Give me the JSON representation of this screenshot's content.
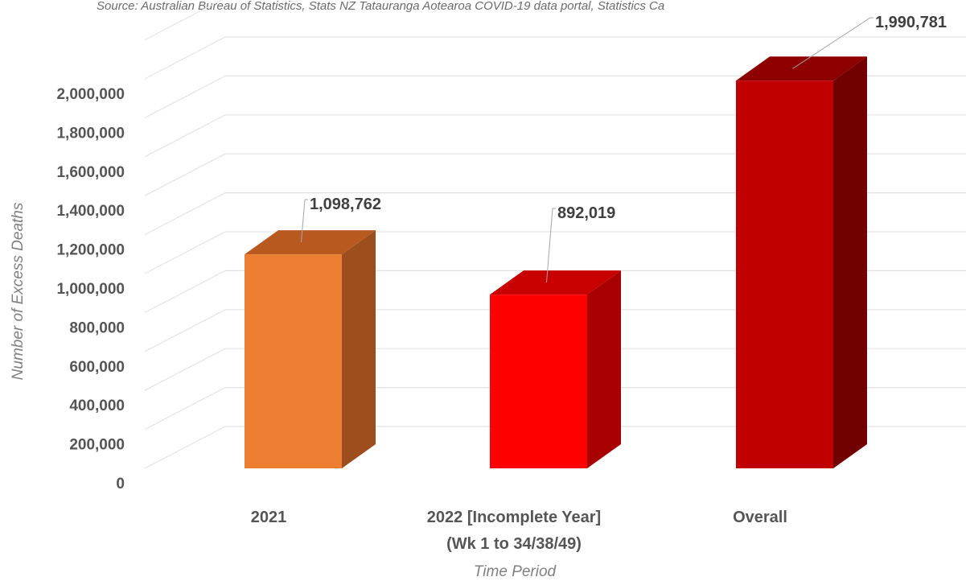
{
  "source_note": "Source: Australian Bureau of Statistics, Stats NZ Tatauranga Aotearoa COVID-19 data portal, Statistics Ca",
  "chart_data": {
    "type": "bar",
    "style": "3d-column",
    "title": "",
    "xlabel": "Time Period",
    "ylabel": "Number of Excess Deaths",
    "ylim": [
      0,
      2000000
    ],
    "ytick_step": 200000,
    "yticks": [
      "0",
      "200,000",
      "400,000",
      "600,000",
      "800,000",
      "1,000,000",
      "1,200,000",
      "1,400,000",
      "1,600,000",
      "1,800,000",
      "2,000,000"
    ],
    "grid": true,
    "legend": "none",
    "categories": [
      [
        "2021"
      ],
      [
        "2022 [Incomplete Year]",
        "(Wk 1 to 34/38/49)"
      ],
      [
        "Overall"
      ]
    ],
    "values": [
      1098762,
      892019,
      1990781
    ],
    "data_labels": [
      "1,098,762",
      "892,019",
      "1,990,781"
    ],
    "colors": [
      {
        "front": "#ED7D31",
        "side": "#9E4D1C",
        "top": "#B85A20"
      },
      {
        "front": "#FF0000",
        "side": "#A80000",
        "top": "#C80000"
      },
      {
        "front": "#C00000",
        "side": "#720000",
        "top": "#8E0000"
      }
    ]
  }
}
